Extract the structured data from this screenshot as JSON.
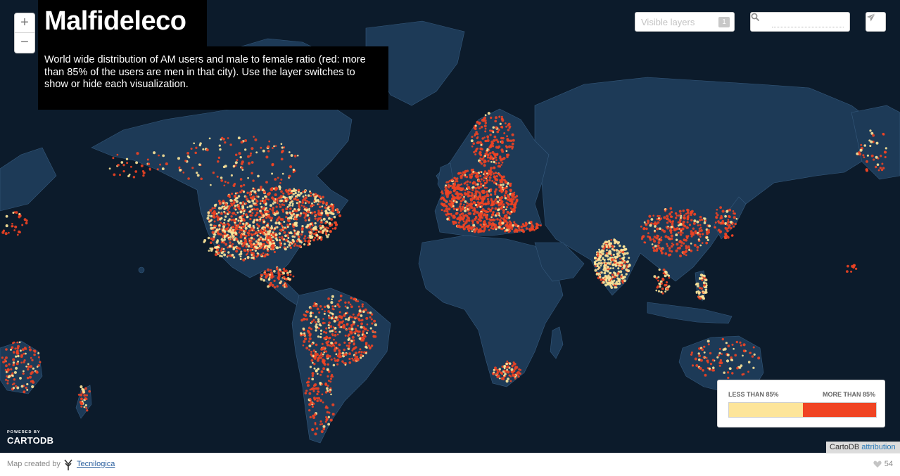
{
  "map": {
    "title": "Malfideleco",
    "description": "World wide distribution of AM users and male to female ratio (red: more than 85% of the users are men in that city). Use the layer switches to show or hide each visualization.",
    "zoom_in_label": "+",
    "zoom_out_label": "−",
    "colors": {
      "ocean": "#0c1b2b",
      "land": "#1d3a57",
      "border": "#35597c",
      "men_over_85": "#f04423",
      "men_under_85": "#fde59a"
    }
  },
  "toolbar": {
    "layers_label": "Visible layers",
    "layers_count": "1",
    "search_placeholder": "",
    "search_icon": "search-icon",
    "share_icon": "paper-plane-icon"
  },
  "legend": {
    "left_label": "LESS THAN 85%",
    "right_label": "MORE THAN 85%",
    "categories": [
      {
        "label": "LESS THAN 85%",
        "color": "#fde59a"
      },
      {
        "label": "MORE THAN 85%",
        "color": "#f04423"
      }
    ]
  },
  "branding": {
    "powered_by": "POWERED BY",
    "brand": "CARTODB",
    "attribution_prefix": "CartoDB",
    "attribution_link": "attribution"
  },
  "footer": {
    "created_by": "Map created by",
    "author": "Tecnilogica",
    "likes": "54",
    "like_icon": "heart-icon"
  }
}
